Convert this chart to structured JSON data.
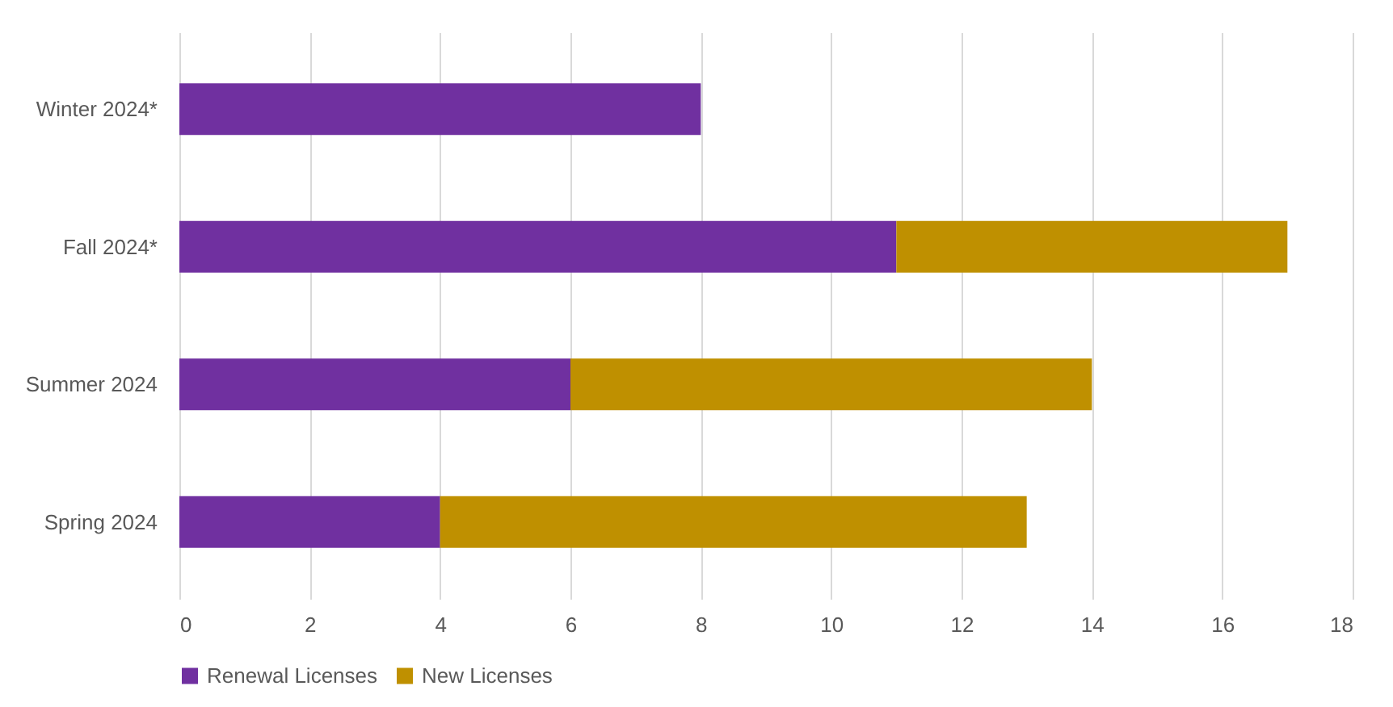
{
  "chart_data": {
    "type": "bar",
    "orientation": "horizontal",
    "stacked": true,
    "categories": [
      "Winter 2024*",
      "Fall 2024*",
      "Summer 2024",
      "Spring 2024"
    ],
    "series": [
      {
        "name": "Renewal Licenses",
        "color": "#7030a0",
        "values": [
          8,
          11,
          6,
          4
        ]
      },
      {
        "name": "New Licenses",
        "color": "#bf9000",
        "values": [
          null,
          6,
          8,
          9
        ]
      }
    ],
    "xlim": [
      0,
      18
    ],
    "xticks": [
      0,
      2,
      4,
      6,
      8,
      10,
      12,
      14,
      16,
      18
    ],
    "grid": "x",
    "legend": "bottom"
  }
}
